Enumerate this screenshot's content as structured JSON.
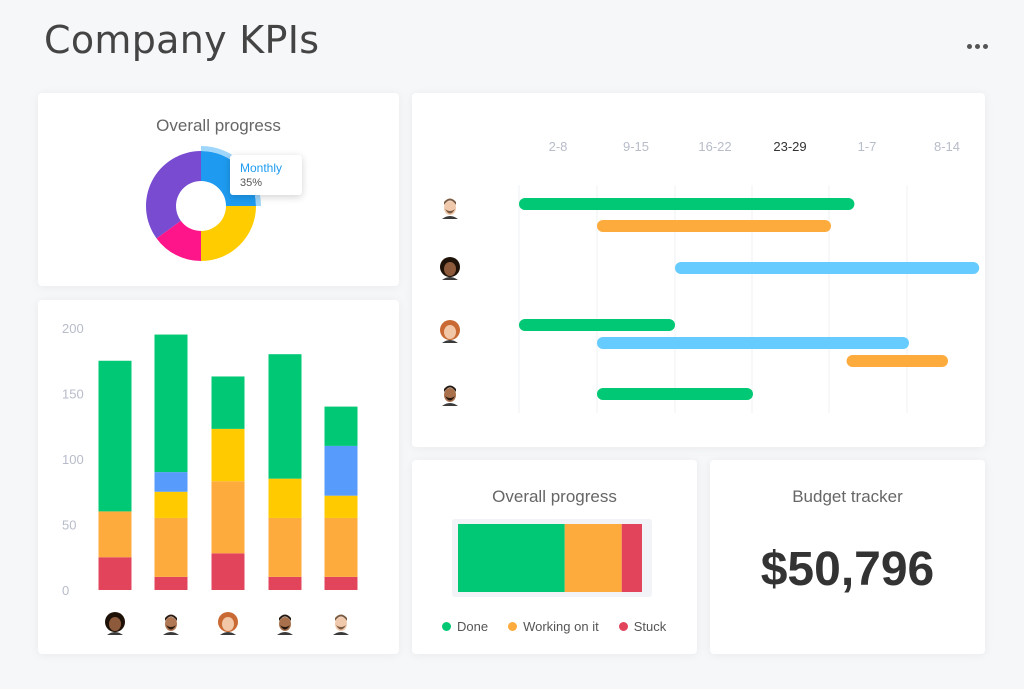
{
  "page": {
    "title": "Company KPIs",
    "more_icon": "more-horizontal-icon"
  },
  "donut_card": {
    "title": "Overall progress",
    "tooltip": {
      "label": "Monthly",
      "value": "35%"
    },
    "chart_data": {
      "type": "pie",
      "slices": [
        {
          "value": 25,
          "color": "#1e9bf0"
        },
        {
          "value": 25,
          "color": "#ffcc00"
        },
        {
          "value": 15,
          "color": "#ff158a"
        },
        {
          "value": 35,
          "color": "#784bd1"
        }
      ]
    }
  },
  "bar_card": {
    "chart_data": {
      "type": "bar",
      "stacked": true,
      "yticks": [
        0,
        50,
        100,
        150,
        200
      ],
      "ylim": [
        0,
        200
      ],
      "categories": [
        "person-1",
        "person-2",
        "person-3",
        "person-4",
        "person-5"
      ],
      "series": [
        {
          "color": "#e2445c",
          "values": [
            25,
            10,
            28,
            10,
            10
          ]
        },
        {
          "color": "#fdab3d",
          "values": [
            35,
            45,
            55,
            45,
            45
          ]
        },
        {
          "color": "#ffcb00",
          "values": [
            0,
            20,
            40,
            30,
            17
          ]
        },
        {
          "color": "#579bfc",
          "values": [
            0,
            15,
            0,
            0,
            38
          ]
        },
        {
          "color": "#00c875",
          "values": [
            115,
            105,
            40,
            95,
            30
          ]
        }
      ]
    }
  },
  "timeline_card": {
    "columns": [
      {
        "label": "2-8",
        "active": false
      },
      {
        "label": "9-15",
        "active": false
      },
      {
        "label": "16-22",
        "active": false
      },
      {
        "label": "23-29",
        "active": true
      },
      {
        "label": "1-7",
        "active": false
      },
      {
        "label": "8-14",
        "active": false
      }
    ],
    "rows": [
      {
        "avatar": "avatar-man-beard",
        "bars": [
          {
            "start": 0,
            "end": 4.3,
            "color": "#00c875"
          },
          {
            "start": 1.0,
            "end": 4.0,
            "color": "#fdab3d"
          }
        ]
      },
      {
        "avatar": "avatar-woman-curly",
        "bars": [
          {
            "start": 2.0,
            "end": 5.9,
            "color": "#66ccff"
          }
        ]
      },
      {
        "avatar": "avatar-woman-red",
        "bars": [
          {
            "start": 0,
            "end": 2.0,
            "color": "#00c875"
          },
          {
            "start": 1.0,
            "end": 5.0,
            "color": "#66ccff"
          },
          {
            "start": 4.2,
            "end": 5.5,
            "color": "#fdab3d"
          }
        ]
      },
      {
        "avatar": "avatar-man-dark",
        "bars": [
          {
            "start": 1.0,
            "end": 3.0,
            "color": "#00c875"
          }
        ]
      }
    ]
  },
  "progress_card": {
    "title": "Overall progress",
    "segments": [
      {
        "label": "Done",
        "value": 58,
        "color": "#00c875"
      },
      {
        "label": "Working on it",
        "value": 31,
        "color": "#fdab3d"
      },
      {
        "label": "Stuck",
        "value": 11,
        "color": "#e2445c"
      }
    ]
  },
  "budget_card": {
    "title": "Budget tracker",
    "amount": "$50,796"
  }
}
